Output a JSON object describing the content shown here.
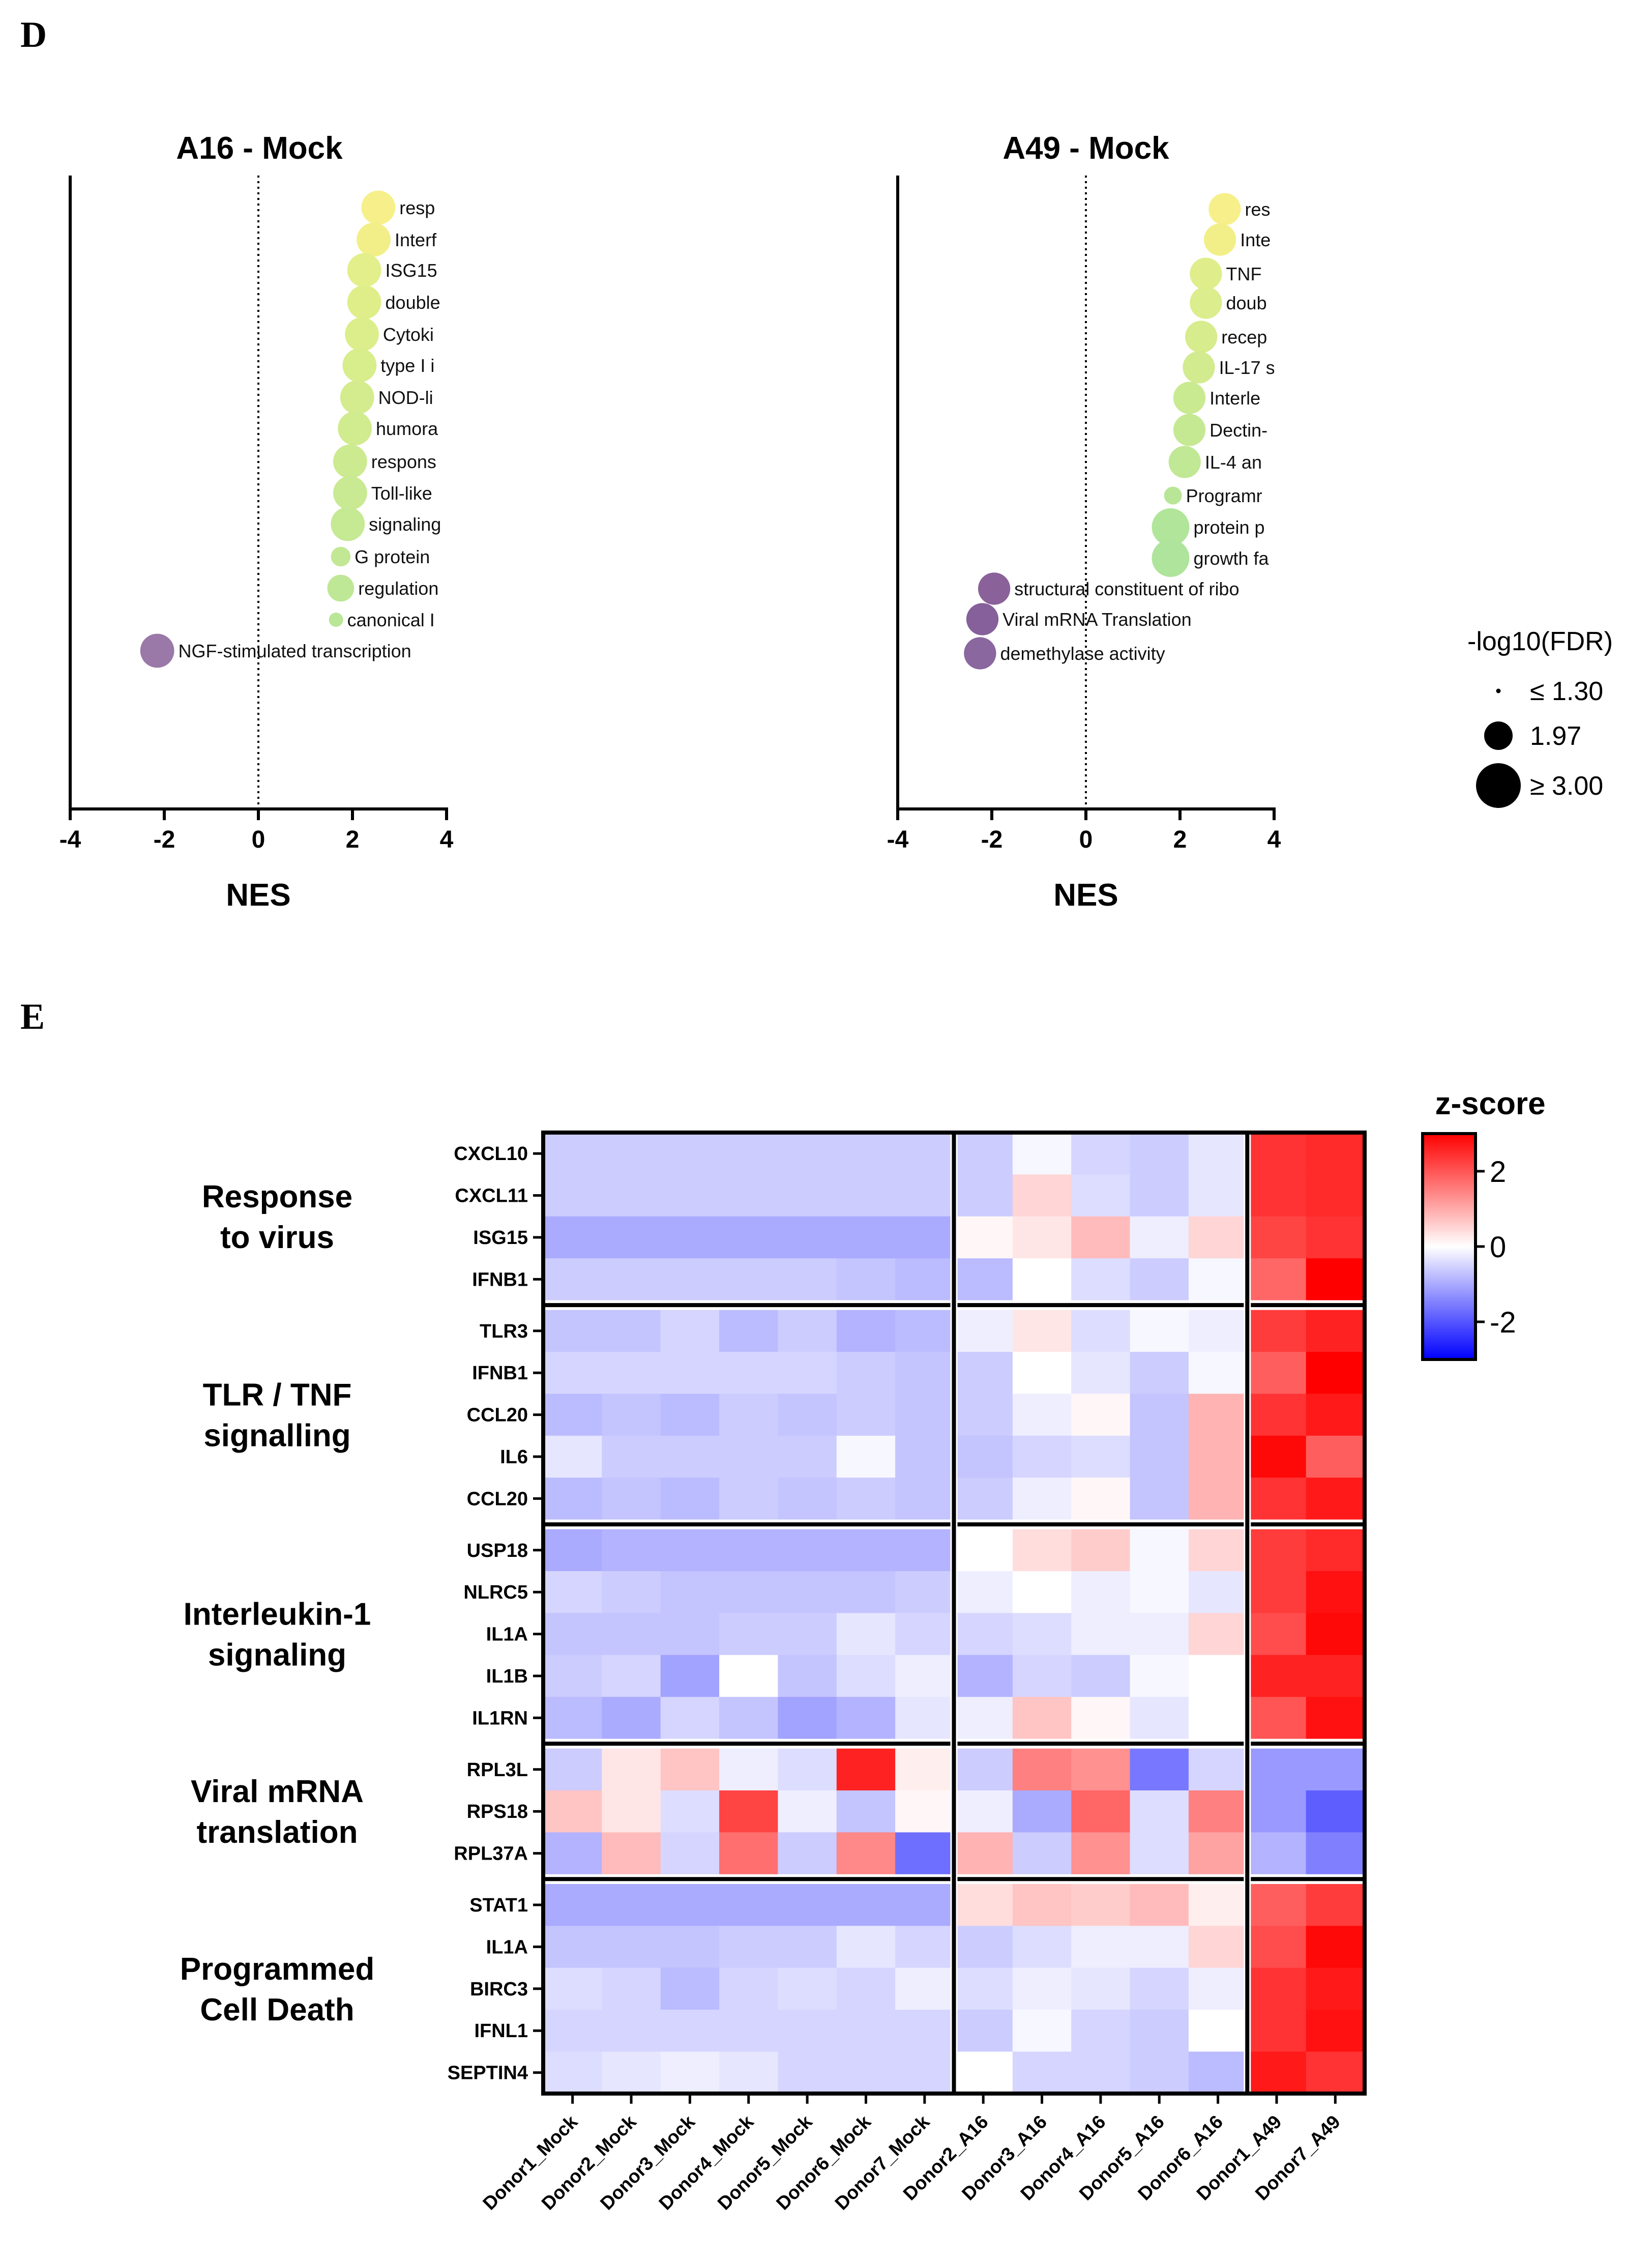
{
  "panel_d": {
    "letter": "D",
    "size_legend": {
      "title": "-log10(FDR)",
      "items": [
        {
          "value": 1.3,
          "label": "≤  1.30"
        },
        {
          "value": 1.97,
          "label": "1.97"
        },
        {
          "value": 3.0,
          "label": "≥  3.00"
        }
      ]
    }
  },
  "panel_e": {
    "letter": "E"
  },
  "chart_data": [
    {
      "type": "scatter",
      "title": "A16 - Mock",
      "xlabel": "NES",
      "ylabel": "",
      "xlim": [
        -4,
        4
      ],
      "xticks": [
        -4,
        -2,
        0,
        2,
        4
      ],
      "points": [
        {
          "label": "resp",
          "nes": 2.55,
          "fdr": 2.4,
          "color": "#f7f08a"
        },
        {
          "label": "Interf",
          "nes": 2.45,
          "fdr": 2.4,
          "color": "#f3ef88"
        },
        {
          "label": "ISG15",
          "nes": 2.25,
          "fdr": 2.4,
          "color": "#e3ef8a"
        },
        {
          "label": "double",
          "nes": 2.25,
          "fdr": 2.4,
          "color": "#e0ee8a"
        },
        {
          "label": "Cytoki",
          "nes": 2.2,
          "fdr": 2.4,
          "color": "#dcee8c"
        },
        {
          "label": "type I i",
          "nes": 2.15,
          "fdr": 2.4,
          "color": "#d8ed8c"
        },
        {
          "label": "NOD-li",
          "nes": 2.1,
          "fdr": 2.4,
          "color": "#d4ec8e"
        },
        {
          "label": "humora",
          "nes": 2.05,
          "fdr": 2.4,
          "color": "#d1eb8f"
        },
        {
          "label": "respons",
          "nes": 1.95,
          "fdr": 2.4,
          "color": "#ccea90"
        },
        {
          "label": "Toll-like",
          "nes": 1.95,
          "fdr": 2.4,
          "color": "#c9ea92"
        },
        {
          "label": "signaling",
          "nes": 1.9,
          "fdr": 2.4,
          "color": "#c6e993"
        },
        {
          "label": "G protein",
          "nes": 1.75,
          "fdr": 1.6,
          "color": "#c2e895"
        },
        {
          "label": "regulation",
          "nes": 1.75,
          "fdr": 2.0,
          "color": "#bee796"
        },
        {
          "label": "canonical I",
          "nes": 1.65,
          "fdr": 1.3,
          "color": "#bae697"
        },
        {
          "label": "NGF-stimulated transcription",
          "nes": -2.15,
          "fdr": 2.4,
          "color": "#9a78a8"
        }
      ]
    },
    {
      "type": "scatter",
      "title": "A49 - Mock",
      "xlabel": "NES",
      "ylabel": "",
      "xlim": [
        -4,
        4
      ],
      "xticks": [
        -4,
        -2,
        0,
        2,
        4
      ],
      "points": [
        {
          "label": "res",
          "nes": 2.95,
          "fdr": 2.3,
          "color": "#f7f08a"
        },
        {
          "label": "Inte",
          "nes": 2.85,
          "fdr": 2.3,
          "color": "#f2ef88"
        },
        {
          "label": "TNF",
          "nes": 2.55,
          "fdr": 2.3,
          "color": "#dfee8b"
        },
        {
          "label": "doub",
          "nes": 2.55,
          "fdr": 2.3,
          "color": "#dbed8c"
        },
        {
          "label": "recep",
          "nes": 2.45,
          "fdr": 2.3,
          "color": "#d6ec8d"
        },
        {
          "label": "IL-17 s",
          "nes": 2.4,
          "fdr": 2.3,
          "color": "#d2eb8f"
        },
        {
          "label": "Interle",
          "nes": 2.2,
          "fdr": 2.3,
          "color": "#c9ea91"
        },
        {
          "label": "Dectin-",
          "nes": 2.2,
          "fdr": 2.3,
          "color": "#c5e993"
        },
        {
          "label": "IL-4 an",
          "nes": 2.1,
          "fdr": 2.3,
          "color": "#c1e894"
        },
        {
          "label": "Programr",
          "nes": 1.85,
          "fdr": 1.5,
          "color": "#b8e696"
        },
        {
          "label": "protein p",
          "nes": 1.8,
          "fdr": 2.6,
          "color": "#b0e59a"
        },
        {
          "label": "growth fa",
          "nes": 1.8,
          "fdr": 2.6,
          "color": "#aee49b"
        },
        {
          "label": "structural constituent of ribo",
          "nes": -1.95,
          "fdr": 2.3,
          "color": "#8a6199"
        },
        {
          "label": "Viral mRNA Translation",
          "nes": -2.2,
          "fdr": 2.3,
          "color": "#85609a"
        },
        {
          "label": "demethylase activity",
          "nes": -2.25,
          "fdr": 2.3,
          "color": "#8a679f"
        }
      ]
    },
    {
      "type": "heatmap",
      "title": "",
      "legend_title": "z-score",
      "colorbar_ticks": [
        2,
        0,
        -2
      ],
      "zlim": [
        -3,
        3
      ],
      "columns": [
        "Donor1_Mock",
        "Donor2_Mock",
        "Donor3_Mock",
        "Donor4_Mock",
        "Donor5_Mock",
        "Donor6_Mock",
        "Donor7_Mock",
        "Donor2_A16",
        "Donor3_A16",
        "Donor4_A16",
        "Donor5_A16",
        "Donor6_A16",
        "Donor1_A49",
        "Donor7_A49"
      ],
      "groups": [
        {
          "name_lines": [
            "Response",
            "to virus"
          ],
          "rows": [
            {
              "gene": "CXCL10",
              "values": [
                -0.6,
                -0.6,
                -0.6,
                -0.6,
                -0.6,
                -0.6,
                -0.6,
                -0.6,
                -0.1,
                -0.5,
                -0.6,
                -0.3,
                2.4,
                2.5
              ]
            },
            {
              "gene": "CXCL11",
              "values": [
                -0.6,
                -0.6,
                -0.6,
                -0.6,
                -0.6,
                -0.6,
                -0.6,
                -0.6,
                0.5,
                -0.4,
                -0.6,
                -0.3,
                2.4,
                2.5
              ]
            },
            {
              "gene": "ISG15",
              "values": [
                -1.0,
                -1.0,
                -1.0,
                -1.0,
                -1.0,
                -1.0,
                -1.0,
                0.1,
                0.3,
                0.8,
                -0.2,
                0.5,
                2.2,
                2.4
              ]
            },
            {
              "gene": "IFNB1",
              "values": [
                -0.6,
                -0.6,
                -0.6,
                -0.6,
                -0.6,
                -0.7,
                -0.8,
                -0.8,
                0.0,
                -0.4,
                -0.6,
                -0.1,
                1.8,
                3.0
              ]
            }
          ]
        },
        {
          "name_lines": [
            "TLR / TNF",
            "signalling"
          ],
          "rows": [
            {
              "gene": "TLR3",
              "values": [
                -0.7,
                -0.7,
                -0.5,
                -0.8,
                -0.6,
                -0.9,
                -0.8,
                -0.2,
                0.3,
                -0.4,
                -0.1,
                -0.2,
                2.3,
                2.6
              ]
            },
            {
              "gene": "IFNB1",
              "values": [
                -0.5,
                -0.5,
                -0.5,
                -0.5,
                -0.5,
                -0.6,
                -0.7,
                -0.6,
                0.0,
                -0.3,
                -0.6,
                -0.1,
                1.9,
                3.0
              ]
            },
            {
              "gene": "CCL20",
              "values": [
                -0.8,
                -0.7,
                -0.8,
                -0.6,
                -0.7,
                -0.6,
                -0.7,
                -0.6,
                -0.2,
                0.1,
                -0.7,
                0.9,
                2.4,
                2.7
              ]
            },
            {
              "gene": "IL6",
              "values": [
                -0.3,
                -0.6,
                -0.6,
                -0.6,
                -0.6,
                -0.1,
                -0.7,
                -0.7,
                -0.5,
                -0.4,
                -0.7,
                0.9,
                2.9,
                1.9
              ]
            },
            {
              "gene": "CCL20",
              "values": [
                -0.8,
                -0.7,
                -0.8,
                -0.6,
                -0.7,
                -0.6,
                -0.7,
                -0.6,
                -0.2,
                0.1,
                -0.7,
                0.9,
                2.4,
                2.7
              ]
            }
          ]
        },
        {
          "name_lines": [
            "Interleukin-1",
            "signaling"
          ],
          "rows": [
            {
              "gene": "USP18",
              "values": [
                -1.0,
                -0.9,
                -0.9,
                -0.9,
                -0.9,
                -0.9,
                -0.9,
                0.0,
                0.4,
                0.6,
                -0.1,
                0.5,
                2.3,
                2.5
              ]
            },
            {
              "gene": "NLRC5",
              "values": [
                -0.5,
                -0.6,
                -0.7,
                -0.7,
                -0.7,
                -0.7,
                -0.6,
                -0.2,
                0.0,
                -0.2,
                -0.1,
                -0.3,
                2.3,
                2.8
              ]
            },
            {
              "gene": "IL1A",
              "values": [
                -0.7,
                -0.7,
                -0.7,
                -0.6,
                -0.6,
                -0.3,
                -0.5,
                -0.5,
                -0.4,
                -0.2,
                -0.2,
                0.5,
                2.1,
                2.9
              ]
            },
            {
              "gene": "IL1B",
              "values": [
                -0.6,
                -0.5,
                -1.1,
                0.0,
                -0.7,
                -0.4,
                -0.2,
                -0.9,
                -0.5,
                -0.6,
                -0.1,
                0.0,
                2.6,
                2.6
              ]
            },
            {
              "gene": "IL1RN",
              "values": [
                -0.8,
                -1.0,
                -0.5,
                -0.7,
                -1.1,
                -0.9,
                -0.3,
                -0.2,
                0.7,
                0.1,
                -0.3,
                0.0,
                2.0,
                2.8
              ]
            }
          ]
        },
        {
          "name_lines": [
            "Viral mRNA",
            "translation"
          ],
          "rows": [
            {
              "gene": "RPL3L",
              "values": [
                -0.6,
                0.3,
                0.7,
                -0.2,
                -0.4,
                2.6,
                0.2,
                -0.6,
                1.5,
                1.3,
                -1.6,
                -0.5,
                -1.2,
                -1.2
              ]
            },
            {
              "gene": "RPS18",
              "values": [
                0.7,
                0.3,
                -0.4,
                2.2,
                -0.2,
                -0.7,
                0.1,
                -0.2,
                -1.0,
                1.8,
                -0.4,
                1.5,
                -1.2,
                -1.9
              ]
            },
            {
              "gene": "RPL37A",
              "values": [
                -0.9,
                0.8,
                -0.5,
                1.7,
                -0.6,
                1.4,
                -1.7,
                0.9,
                -0.6,
                1.3,
                -0.4,
                1.1,
                -0.9,
                -1.5
              ]
            }
          ]
        },
        {
          "name_lines": [
            "Programmed",
            "Cell  Death"
          ],
          "rows": [
            {
              "gene": "STAT1",
              "values": [
                -1.0,
                -1.0,
                -1.0,
                -1.0,
                -1.0,
                -1.0,
                -1.0,
                0.4,
                0.7,
                0.6,
                0.8,
                0.2,
                1.9,
                2.3
              ]
            },
            {
              "gene": "IL1A",
              "values": [
                -0.7,
                -0.7,
                -0.7,
                -0.6,
                -0.6,
                -0.3,
                -0.5,
                -0.6,
                -0.4,
                -0.2,
                -0.2,
                0.5,
                2.1,
                2.9
              ]
            },
            {
              "gene": "BIRC3",
              "values": [
                -0.4,
                -0.5,
                -0.8,
                -0.5,
                -0.4,
                -0.5,
                -0.2,
                -0.4,
                -0.2,
                -0.3,
                -0.5,
                -0.2,
                2.4,
                2.7
              ]
            },
            {
              "gene": "IFNL1",
              "values": [
                -0.5,
                -0.5,
                -0.5,
                -0.5,
                -0.5,
                -0.5,
                -0.5,
                -0.6,
                -0.1,
                -0.5,
                -0.6,
                0.0,
                2.4,
                2.8
              ]
            },
            {
              "gene": "SEPTIN4",
              "values": [
                -0.4,
                -0.3,
                -0.2,
                -0.3,
                -0.5,
                -0.5,
                -0.5,
                0.0,
                -0.5,
                -0.5,
                -0.6,
                -0.8,
                2.7,
                2.4
              ]
            }
          ]
        }
      ]
    }
  ]
}
